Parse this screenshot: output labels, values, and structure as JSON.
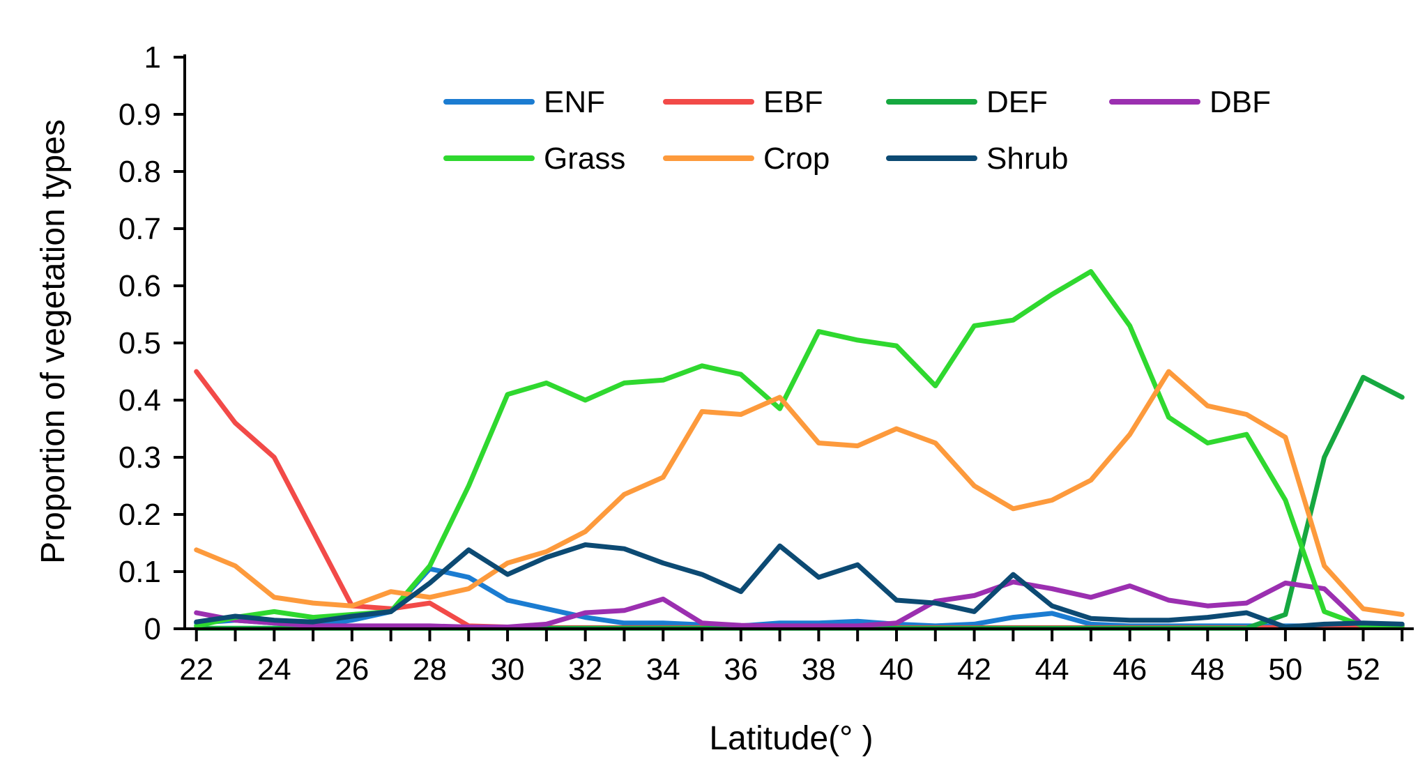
{
  "chart_data": {
    "type": "line",
    "xlabel": "Latitude(° )",
    "ylabel": "Proportion of vegetation types",
    "xlim": [
      21.7,
      53.3
    ],
    "ylim": [
      0,
      1
    ],
    "x_ticks": [
      22,
      24,
      26,
      28,
      30,
      32,
      34,
      36,
      38,
      40,
      42,
      44,
      46,
      48,
      50,
      52
    ],
    "y_ticks": [
      0,
      0.1,
      0.2,
      0.3,
      0.4,
      0.5,
      0.6,
      0.7,
      0.8,
      0.9,
      1
    ],
    "y_tick_labels": [
      "0",
      "0.1",
      "0.2",
      "0.3",
      "0.4",
      "0.5",
      "0.6",
      "0.7",
      "0.8",
      "0.9",
      "1"
    ],
    "grid": false,
    "legend_position": "top",
    "x": [
      22,
      23,
      24,
      25,
      26,
      27,
      28,
      29,
      30,
      31,
      32,
      33,
      34,
      35,
      36,
      37,
      38,
      39,
      40,
      41,
      42,
      43,
      44,
      45,
      46,
      47,
      48,
      49,
      50,
      51,
      52,
      53
    ],
    "series": [
      {
        "name": "ENF",
        "color": "#1b7cd1",
        "values": [
          0.01,
          0.015,
          0.01,
          0.005,
          0.015,
          0.03,
          0.105,
          0.09,
          0.05,
          0.035,
          0.02,
          0.01,
          0.01,
          0.007,
          0.005,
          0.01,
          0.01,
          0.013,
          0.008,
          0.005,
          0.008,
          0.02,
          0.027,
          0.008,
          0.005,
          0.005,
          0.005,
          0.005,
          0.005,
          0.005,
          0.005,
          0.005
        ]
      },
      {
        "name": "EBF",
        "color": "#f24a48",
        "values": [
          0.45,
          0.36,
          0.3,
          0.17,
          0.04,
          0.035,
          0.045,
          0.005,
          0.003,
          0.002,
          0.002,
          0.002,
          0.002,
          0.002,
          0.002,
          0.002,
          0.002,
          0.002,
          0.002,
          0.002,
          0.002,
          0.002,
          0.002,
          0.002,
          0.002,
          0.002,
          0.002,
          0.002,
          0.002,
          0.002,
          0.002,
          0.002
        ]
      },
      {
        "name": "DEF",
        "color": "#16a840",
        "values": [
          0.001,
          0.001,
          0.001,
          0.001,
          0.001,
          0.001,
          0.001,
          0.001,
          0.001,
          0.001,
          0.001,
          0.001,
          0.001,
          0.001,
          0.001,
          0.001,
          0.001,
          0.001,
          0.001,
          0.001,
          0.001,
          0.001,
          0.001,
          0.001,
          0.001,
          0.001,
          0.001,
          0.001,
          0.025,
          0.3,
          0.44,
          0.405
        ]
      },
      {
        "name": "DBF",
        "color": "#9b2fb0",
        "values": [
          0.028,
          0.015,
          0.01,
          0.005,
          0.005,
          0.005,
          0.005,
          0.003,
          0.003,
          0.008,
          0.028,
          0.032,
          0.052,
          0.01,
          0.006,
          0.005,
          0.005,
          0.005,
          0.01,
          0.048,
          0.058,
          0.082,
          0.07,
          0.055,
          0.075,
          0.05,
          0.04,
          0.045,
          0.08,
          0.07,
          0.005,
          0.005
        ]
      },
      {
        "name": "Grass",
        "color": "#2fd82f",
        "values": [
          0.005,
          0.02,
          0.03,
          0.02,
          0.025,
          0.03,
          0.11,
          0.25,
          0.41,
          0.43,
          0.4,
          0.43,
          0.435,
          0.46,
          0.445,
          0.385,
          0.52,
          0.505,
          0.495,
          0.425,
          0.53,
          0.54,
          0.585,
          0.625,
          0.53,
          0.37,
          0.325,
          0.34,
          0.225,
          0.03,
          0.005,
          0.005
        ]
      },
      {
        "name": "Crop",
        "color": "#fd9a3c",
        "values": [
          0.138,
          0.11,
          0.055,
          0.045,
          0.04,
          0.065,
          0.055,
          0.07,
          0.115,
          0.135,
          0.17,
          0.235,
          0.265,
          0.38,
          0.375,
          0.405,
          0.325,
          0.32,
          0.35,
          0.325,
          0.25,
          0.21,
          0.225,
          0.26,
          0.34,
          0.45,
          0.39,
          0.375,
          0.335,
          0.11,
          0.035,
          0.025
        ]
      },
      {
        "name": "Shrub",
        "color": "#0c4a73",
        "values": [
          0.012,
          0.022,
          0.015,
          0.012,
          0.022,
          0.03,
          0.08,
          0.138,
          0.095,
          0.125,
          0.147,
          0.14,
          0.115,
          0.095,
          0.065,
          0.145,
          0.09,
          0.112,
          0.05,
          0.045,
          0.03,
          0.095,
          0.04,
          0.018,
          0.015,
          0.015,
          0.02,
          0.028,
          0.003,
          0.008,
          0.01,
          0.008
        ]
      }
    ]
  }
}
